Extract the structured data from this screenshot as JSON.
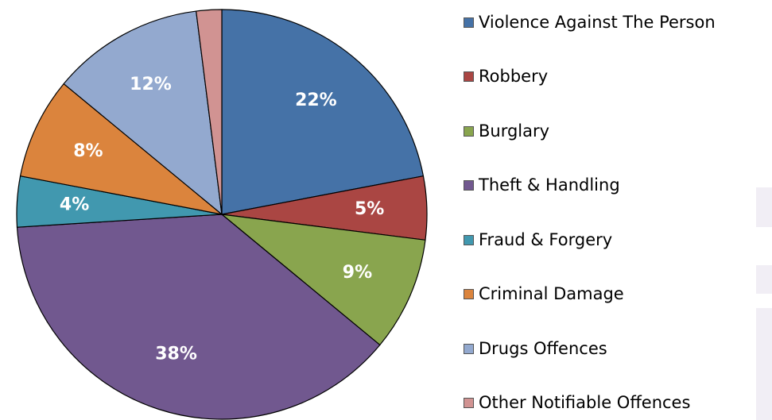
{
  "chart_data": {
    "type": "pie",
    "categories": [
      "Violence Against The Person",
      "Robbery",
      "Burglary",
      "Theft & Handling",
      "Fraud & Forgery",
      "Criminal Damage",
      "Drugs Offences",
      "Other Notifiable Offences"
    ],
    "values": [
      22,
      5,
      9,
      38,
      4,
      8,
      12,
      2
    ],
    "data_labels": [
      "22%",
      "5%",
      "9%",
      "38%",
      "4%",
      "8%",
      "12%",
      ""
    ],
    "colors": [
      "#4572a7",
      "#aa4643",
      "#89a54e",
      "#71588f",
      "#4198af",
      "#db843d",
      "#93a9cf",
      "#d19392"
    ],
    "start_angle_deg": 0,
    "direction": "clockwise",
    "legend_position": "right",
    "title": ""
  }
}
